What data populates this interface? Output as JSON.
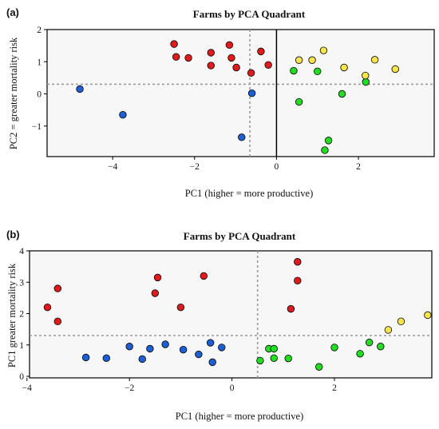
{
  "chart_data": [
    {
      "panel_label": "(a)",
      "type": "scatter",
      "title": "Farms by PCA Quadrant",
      "xlabel": "PC1 (higher = more productive)",
      "ylabel": "PC2 = greater mortality risk",
      "xlim": [
        -5.6,
        3.85
      ],
      "ylim": [
        -1.95,
        2.0
      ],
      "xticks": [
        -4,
        -2,
        0,
        2
      ],
      "yticks": [
        -1,
        0,
        1,
        2
      ],
      "ref_x": -0.65,
      "ref_y": 0.3,
      "zero_x": 0,
      "colors": {
        "red": "#e31a1c",
        "blue": "#1f5fd4",
        "green": "#22dd22",
        "yellow": "#f7e34a"
      },
      "series": [
        {
          "color": "red",
          "x": [
            -2.5,
            -2.45,
            -2.15,
            -1.6,
            -1.6,
            -1.15,
            -1.1,
            -0.98,
            -0.62,
            -0.38,
            -0.2
          ],
          "y": [
            1.55,
            1.15,
            1.12,
            1.28,
            0.88,
            1.52,
            1.12,
            0.82,
            0.65,
            1.32,
            0.9
          ]
        },
        {
          "color": "blue",
          "x": [
            -4.8,
            -3.75,
            -0.85,
            -0.6
          ],
          "y": [
            0.15,
            -0.65,
            -1.35,
            0.02
          ]
        },
        {
          "color": "green",
          "x": [
            0.42,
            0.55,
            1.0,
            1.18,
            1.27,
            1.6,
            2.18
          ],
          "y": [
            0.72,
            -0.25,
            0.7,
            -1.75,
            -1.45,
            0.0,
            0.37
          ]
        },
        {
          "color": "yellow",
          "x": [
            0.55,
            0.87,
            1.15,
            1.65,
            2.17,
            2.4,
            2.9
          ],
          "y": [
            1.05,
            1.05,
            1.35,
            0.82,
            0.57,
            1.06,
            0.77
          ]
        }
      ]
    },
    {
      "panel_label": "(b)",
      "type": "scatter",
      "title": "Farms by PCA Quadrant",
      "xlabel": "PC1 (higher = more productive)",
      "ylabel": "PC1 greater mortality risk",
      "xlim": [
        -3.95,
        3.9
      ],
      "ylim": [
        -0.05,
        4.0
      ],
      "xticks": [
        -4,
        -2,
        0,
        2
      ],
      "yticks": [
        0,
        1,
        2,
        3,
        4
      ],
      "ref_x": 0.5,
      "ref_y": 1.3,
      "colors": {
        "red": "#e31a1c",
        "blue": "#1f5fd4",
        "green": "#22dd22",
        "yellow": "#f7e34a"
      },
      "series": [
        {
          "color": "red",
          "x": [
            -3.6,
            -3.4,
            -3.4,
            -1.45,
            -1.5,
            -1.0,
            -0.55,
            1.15,
            1.28,
            1.28
          ],
          "y": [
            2.2,
            2.8,
            1.75,
            3.15,
            2.65,
            2.2,
            3.2,
            2.15,
            3.05,
            3.65
          ]
        },
        {
          "color": "blue",
          "x": [
            -2.85,
            -2.45,
            -2.0,
            -1.75,
            -1.6,
            -1.3,
            -0.95,
            -0.65,
            -0.42,
            -0.38,
            -0.2
          ],
          "y": [
            0.6,
            0.58,
            0.95,
            0.55,
            0.88,
            1.02,
            0.85,
            0.7,
            1.07,
            0.45,
            0.92
          ]
        },
        {
          "color": "green",
          "x": [
            0.55,
            0.72,
            0.82,
            0.82,
            1.1,
            1.7,
            2.0,
            2.5,
            2.68,
            2.9
          ],
          "y": [
            0.5,
            0.88,
            0.58,
            0.88,
            0.57,
            0.3,
            0.92,
            0.72,
            1.08,
            0.95
          ]
        },
        {
          "color": "yellow",
          "x": [
            3.05,
            3.3,
            3.82
          ],
          "y": [
            1.48,
            1.75,
            1.95
          ]
        }
      ]
    }
  ]
}
